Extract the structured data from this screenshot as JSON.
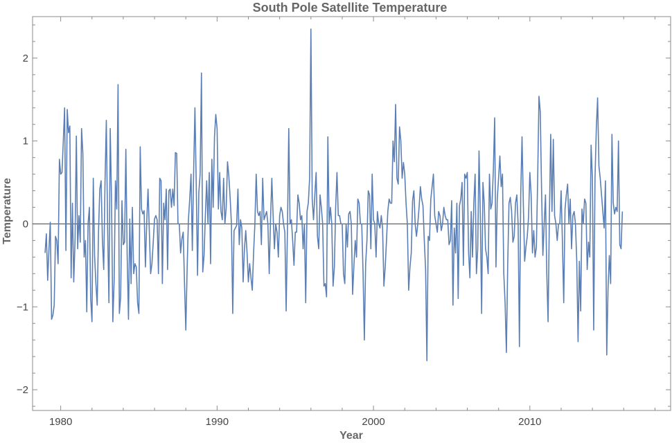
{
  "chart_data": {
    "type": "line",
    "title": "South Pole Satellite Temperature",
    "xlabel": "Year",
    "ylabel": "Temperature",
    "xlim": [
      1978.2,
      2019.0
    ],
    "ylim": [
      -2.25,
      2.5
    ],
    "xticks": [
      1980,
      1990,
      2000,
      2010
    ],
    "xtick_labels": [
      "1980",
      "1990",
      "2000",
      "2010"
    ],
    "yticks": [
      -2,
      -1,
      0,
      1,
      2
    ],
    "ytick_labels": [
      "−2",
      "−1",
      "0",
      "1",
      "2"
    ],
    "grid": false,
    "reference_line_y": 0,
    "series": [
      {
        "name": "South Pole",
        "color": "#5b7fb4",
        "x_start": 1979.0,
        "x_step": 0.08333,
        "values": [
          -0.35,
          -0.12,
          -0.68,
          -0.3,
          0.02,
          -1.15,
          -1.1,
          -0.98,
          -0.15,
          -0.2,
          -0.48,
          0.78,
          0.6,
          0.62,
          1.0,
          1.4,
          -0.32,
          1.38,
          1.1,
          1.18,
          -0.65,
          0.25,
          -0.7,
          -0.2,
          1.06,
          -0.3,
          0.1,
          -0.22,
          1.15,
          0.85,
          -0.4,
          -0.2,
          -1.06,
          0.0,
          0.2,
          -0.9,
          -1.18,
          0.55,
          -0.38,
          -0.72,
          -0.98,
          -0.1,
          0.42,
          0.52,
          -0.2,
          -0.55,
          0.5,
          1.25,
          -0.05,
          -0.95,
          1.15,
          0.28,
          -1.18,
          -0.68,
          0.52,
          0.18,
          1.68,
          -1.08,
          -0.88,
          0.28,
          -0.25,
          -0.22,
          0.9,
          -0.38,
          -1.15,
          0.06,
          -0.72,
          0.2,
          -0.6,
          -0.48,
          -0.52,
          -0.95,
          -1.08,
          0.93,
          0.18,
          0.12,
          0.16,
          -0.52,
          0.02,
          0.42,
          -0.08,
          -0.6,
          -0.48,
          -0.22,
          0.06,
          0.1,
          0.05,
          -0.6,
          0.55,
          0.52,
          -0.72,
          0.25,
          0.05,
          0.42,
          -0.55,
          0.4,
          0.42,
          0.2,
          0.42,
          0.22,
          0.86,
          0.85,
          0.0,
          0.0,
          -0.35,
          -0.18,
          -0.1,
          -0.72,
          -1.28,
          -0.55,
          0.05,
          0.3,
          0.6,
          -0.32,
          0.62,
          1.4,
          0.48,
          -0.62,
          0.38,
          0.6,
          1.82,
          -0.58,
          -0.38,
          0.1,
          0.52,
          0.0,
          0.62,
          -0.48,
          0.78,
          0.2,
          1.05,
          1.32,
          1.15,
          0.18,
          0.62,
          0.15,
          0.05,
          0.55,
          0.0,
          0.2,
          0.75,
          0.58,
          0.32,
          0.0,
          -1.08,
          -0.08,
          -0.05,
          -0.02,
          0.42,
          -0.25,
          0.05,
          -0.05,
          -0.7,
          -0.3,
          -0.08,
          -0.35,
          -0.7,
          -0.48,
          -0.65,
          -0.8,
          -0.35,
          0.0,
          0.6,
          0.15,
          0.1,
          0.15,
          -0.25,
          0.55,
          0.05,
          0.1,
          0.15,
          0.0,
          -0.6,
          0.05,
          0.55,
          0.1,
          -0.3,
          0.0,
          -0.1,
          -0.4,
          0.1,
          0.2,
          0.15,
          0.0,
          -0.1,
          -1.05,
          -0.05,
          1.15,
          0.0,
          0.05,
          -0.2,
          -0.5,
          -0.1,
          -0.1,
          0.35,
          0.25,
          0.05,
          0.1,
          -0.3,
          0.0,
          -0.95,
          0.15,
          0.25,
          0.55,
          2.35,
          0.3,
          0.05,
          0.35,
          0.62,
          -0.15,
          -0.3,
          0.35,
          0.2,
          0.0,
          -0.75,
          -0.72,
          -0.88,
          1.05,
          0.0,
          0.2,
          0.0,
          -0.75,
          -0.52,
          0.2,
          0.62,
          0.1,
          0.1,
          0.0,
          0.0,
          -0.6,
          -0.72,
          0.0,
          -0.28,
          0.12,
          0.15,
          0.0,
          -0.85,
          -0.5,
          -0.2,
          -0.4,
          0.3,
          0.25,
          0.0,
          0.0,
          -0.58,
          -1.4,
          -0.48,
          -0.2,
          0.4,
          0.35,
          -0.3,
          0.6,
          0.05,
          0.0,
          -0.4,
          0.15,
          0.0,
          -0.05,
          0.1,
          -0.05,
          -0.75,
          -0.52,
          -0.2,
          0.15,
          0.3,
          0.25,
          0.25,
          1.0,
          0.75,
          1.44,
          0.55,
          0.48,
          1.17,
          1.0,
          0.55,
          0.74,
          0.6,
          0.25,
          0.0,
          -0.8,
          -0.52,
          -0.35,
          0.28,
          0.4,
          0.0,
          -0.15,
          0.0,
          0.2,
          0.45,
          0.3,
          0.22,
          -0.2,
          -0.55,
          -1.65,
          -0.15,
          -0.2,
          0.3,
          0.45,
          0.6,
          0.1,
          0.0,
          -0.1,
          0.15,
          0.1,
          -0.08,
          0.0,
          0.2,
          0.1,
          0.05,
          0.05,
          -0.25,
          -0.2,
          0.28,
          -0.98,
          -0.05,
          -0.35,
          0.25,
          -0.9,
          0.22,
          0.3,
          0.5,
          -0.5,
          0.6,
          0.55,
          0.62,
          -0.35,
          -0.65,
          0.15,
          -0.4,
          0.25,
          0.6,
          -0.6,
          -0.3,
          0.88,
          0.1,
          -1.08,
          0.5,
          0.25,
          -0.3,
          -0.4,
          -0.6,
          0.6,
          0.18,
          0.25,
          0.65,
          1.28,
          -0.52,
          0.3,
          0.55,
          0.82,
          0.45,
          0.6,
          -0.6,
          -0.95,
          -1.55,
          -0.5,
          0.25,
          0.32,
          0.15,
          -0.22,
          -0.15,
          0.25,
          0.35,
          0.0,
          -1.48,
          0.35,
          1.05,
          0.25,
          -0.45,
          -0.28,
          -0.15,
          0.08,
          0.62,
          0.35,
          -0.35,
          -0.08,
          -0.4,
          -0.28,
          0.55,
          1.54,
          1.35,
          0.4,
          -0.38,
          0.0,
          0.35,
          -0.6,
          -1.18,
          0.1,
          1.08,
          0.15,
          1.02,
          0.1,
          0.0,
          -0.2,
          0.0,
          0.0,
          0.4,
          -0.22,
          -0.95,
          0.18,
          0.35,
          0.48,
          0.0,
          0.3,
          -0.3,
          0.1,
          0.15,
          0.0,
          -0.45,
          -1.42,
          -0.45,
          -1.05,
          0.18,
          0.0,
          0.3,
          0.25,
          -0.55,
          -0.22,
          -0.4,
          0.95,
          0.55,
          -1.28,
          0.55,
          1.15,
          1.52,
          0.7,
          0.55,
          0.35,
          0.15,
          -0.05,
          0.52,
          -1.58,
          -0.78,
          -0.38,
          -0.72,
          1.08,
          0.25,
          0.12,
          0.2,
          0.15,
          1.0,
          -0.25,
          -0.3,
          0.15
        ]
      }
    ]
  }
}
